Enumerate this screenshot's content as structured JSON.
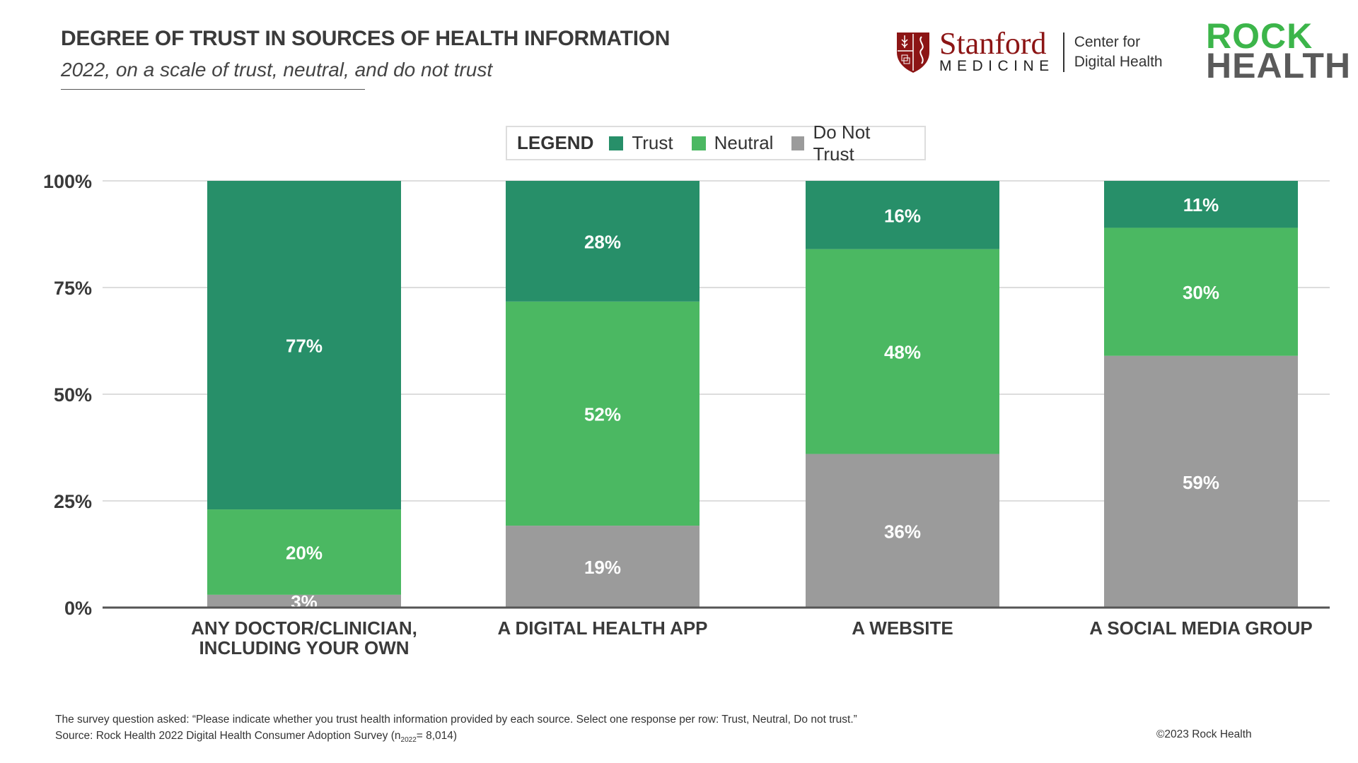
{
  "header": {
    "title": "DEGREE OF TRUST IN SOURCES OF HEALTH INFORMATION",
    "subtitle": "2022, on a scale of trust, neutral, and do not trust"
  },
  "logos": {
    "stanford": "Stanford",
    "medicine": "MEDICINE",
    "center_line1": "Center for",
    "center_line2": "Digital Health",
    "rock": "ROCK",
    "health": "HEALTH"
  },
  "legend": {
    "title": "LEGEND"
  },
  "chart_data": {
    "type": "bar",
    "stacked": true,
    "categories": [
      "ANY DOCTOR/CLINICIAN, INCLUDING YOUR OWN",
      "A DIGITAL HEALTH APP",
      "A WEBSITE",
      "A SOCIAL MEDIA GROUP"
    ],
    "category_lines": [
      [
        "ANY DOCTOR/CLINICIAN,",
        "INCLUDING YOUR OWN"
      ],
      [
        "A DIGITAL HEALTH APP"
      ],
      [
        "A WEBSITE"
      ],
      [
        "A SOCIAL MEDIA GROUP"
      ]
    ],
    "series": [
      {
        "name": "Do Not Trust",
        "color": "#9b9b9b",
        "values": [
          3,
          19,
          36,
          59
        ]
      },
      {
        "name": "Neutral",
        "color": "#4bb862",
        "values": [
          20,
          52,
          48,
          30
        ]
      },
      {
        "name": "Trust",
        "color": "#278f69",
        "values": [
          77,
          28,
          16,
          11
        ]
      }
    ],
    "yticks": [
      "0%",
      "25%",
      "50%",
      "75%",
      "100%"
    ],
    "ylim": [
      0,
      100
    ],
    "grid": true,
    "legend_position": "top-center"
  },
  "footer": {
    "note": "The survey question asked: “Please indicate whether you trust health information provided by each source. Select one response per row: Trust, Neutral, Do not trust.”",
    "source": "Source: Rock Health 2022 Digital Health Consumer Adoption Survey  (n",
    "sub": "2022",
    "n": "= 8,014)",
    "copyright": "©2023 Rock Health"
  }
}
